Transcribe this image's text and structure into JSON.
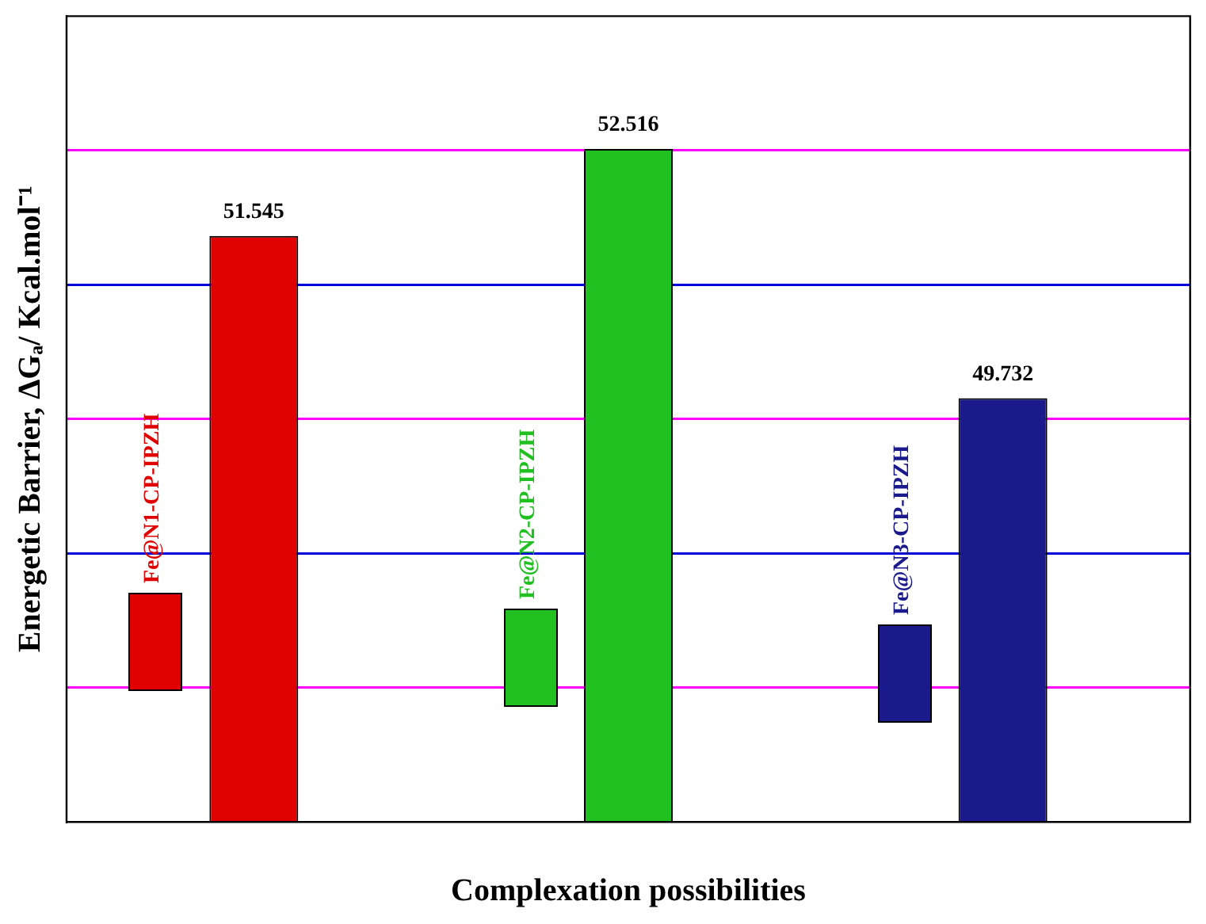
{
  "chart_data": {
    "type": "bar",
    "xlabel": "Complexation possibilities",
    "ylabel": "Energetic Barrier, ΔGₐ/ Kcal.mol⁻¹",
    "categories": [
      null,
      null,
      null
    ],
    "values": [
      51.545,
      52.516,
      49.732
    ],
    "colors": [
      "#e00000",
      "#20c020",
      "#1a1a8c"
    ],
    "ylim": [
      45,
      54
    ],
    "yticks": [
      {
        "value": 46.5,
        "label": null
      },
      {
        "value": 48,
        "label": null
      },
      {
        "value": 49.5,
        "label": null
      },
      {
        "value": 51,
        "label": null
      },
      {
        "value": 52.5,
        "label": null
      }
    ],
    "grid": "y",
    "data_labels": true,
    "annotations": [
      "Fe@N1-CP-IPZH",
      "Fe@N2-CP-IPZH",
      "Fe@N3-CP-IPZH"
    ]
  }
}
